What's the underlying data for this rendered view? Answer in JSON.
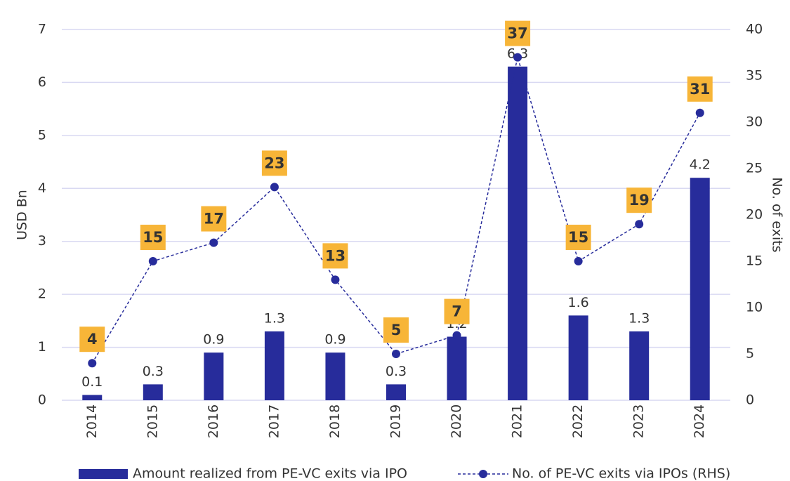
{
  "chart_data": {
    "type": "bar_line",
    "categories": [
      "2014",
      "2015",
      "2016",
      "2017",
      "2018",
      "2019",
      "2020",
      "2021",
      "2022",
      "2023",
      "2024"
    ],
    "series": [
      {
        "name": "Amount realized from PE-VC exits via IPO",
        "type": "bar",
        "color": "#272c9b",
        "values": [
          0.1,
          0.3,
          0.9,
          1.3,
          0.9,
          0.3,
          1.2,
          6.3,
          1.6,
          1.3,
          4.2
        ]
      },
      {
        "name": "No. of PE-VC exits via IPOs (RHS)",
        "type": "line",
        "axis": "y2",
        "color": "#272c9b",
        "label_color": "#f7b538",
        "values": [
          4,
          15,
          17,
          23,
          13,
          5,
          7,
          37,
          15,
          19,
          31
        ]
      }
    ],
    "ylabel": "USD Bn",
    "y2label": "No. of exits",
    "ylim": [
      0,
      7
    ],
    "yticks": [
      0,
      1,
      2,
      3,
      4,
      5,
      6,
      7
    ],
    "y2lim": [
      0,
      40
    ],
    "y2ticks": [
      0,
      5,
      10,
      15,
      20,
      25,
      30,
      35,
      40
    ],
    "grid": true,
    "legend": "bottom"
  }
}
